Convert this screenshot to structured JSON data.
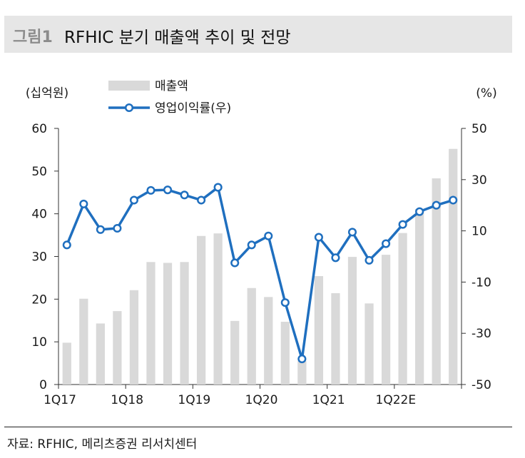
{
  "header": {
    "figure_label": "그림1",
    "title": "RFHIC 분기 매출액 추이 및 전망"
  },
  "source": "자료: RFHIC, 메리츠증권 리서치센터",
  "chart_data": {
    "type": "bar",
    "left_unit": "(십억원)",
    "right_unit": "(%)",
    "left_ylim": [
      0,
      60
    ],
    "right_ylim": [
      -50,
      50
    ],
    "left_ticks": [
      "0",
      "10",
      "20",
      "30",
      "40",
      "50",
      "60"
    ],
    "right_ticks": [
      "-50",
      "-30",
      "-10",
      "10",
      "30",
      "50"
    ],
    "x_tick_labels": [
      {
        "index": 0,
        "label": "1Q17"
      },
      {
        "index": 4,
        "label": "1Q18"
      },
      {
        "index": 8,
        "label": "1Q19"
      },
      {
        "index": 12,
        "label": "1Q20"
      },
      {
        "index": 16,
        "label": "1Q21"
      },
      {
        "index": 20,
        "label": "1Q22E"
      }
    ],
    "categories": [
      "1Q17",
      "2Q17",
      "3Q17",
      "4Q17",
      "1Q18",
      "2Q18",
      "3Q18",
      "4Q18",
      "1Q19",
      "2Q19",
      "3Q19",
      "4Q19",
      "1Q20",
      "2Q20",
      "3Q20",
      "4Q20",
      "1Q21",
      "2Q21",
      "3Q21",
      "4Q21",
      "1Q22E",
      "2Q22E",
      "3Q22E",
      "4Q22E"
    ],
    "series": [
      {
        "name": "매출액",
        "type": "bar",
        "axis": "left",
        "color": "#d9d9d9",
        "values": [
          9.8,
          20.1,
          14.3,
          17.2,
          22.1,
          28.7,
          28.5,
          28.7,
          34.8,
          35.4,
          14.9,
          22.6,
          20.5,
          14.7,
          5.5,
          25.4,
          21.4,
          29.9,
          19.0,
          30.4,
          35.5,
          41.1,
          48.3,
          55.2
        ]
      },
      {
        "name": "영업이익률(우)",
        "type": "line",
        "axis": "right",
        "color": "#1f6fbf",
        "values": [
          4.5,
          20.5,
          10.5,
          11.0,
          22.0,
          25.8,
          26.0,
          24.0,
          22.0,
          27.0,
          -2.5,
          4.5,
          8.0,
          -18.0,
          -40.0,
          7.5,
          -0.5,
          9.5,
          -1.5,
          5.0,
          12.5,
          17.5,
          20.0,
          22.0
        ]
      }
    ],
    "legend_position": "top-left",
    "grid": false
  }
}
